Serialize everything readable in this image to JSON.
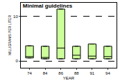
{
  "chart_data": {
    "type": "box",
    "title": "Minimal guidelines",
    "x_label": "YEAR",
    "y_label": "MILLIGRAMS PER LITER",
    "categories": [
      "74",
      "84",
      "86",
      "88",
      "91",
      "94"
    ],
    "q1": [
      0.7,
      0.5,
      0.5,
      0.5,
      0.5,
      0.5
    ],
    "median": [
      1.0,
      0.8,
      2.9,
      1.3,
      1.1,
      1.0
    ],
    "q3": [
      3.4,
      3.3,
      11.6,
      3.3,
      3.8,
      3.3
    ],
    "color": "#ccff99",
    "ylim": [
      -1.5,
      13
    ],
    "yticks": [
      0,
      10
    ],
    "grid": true
  }
}
